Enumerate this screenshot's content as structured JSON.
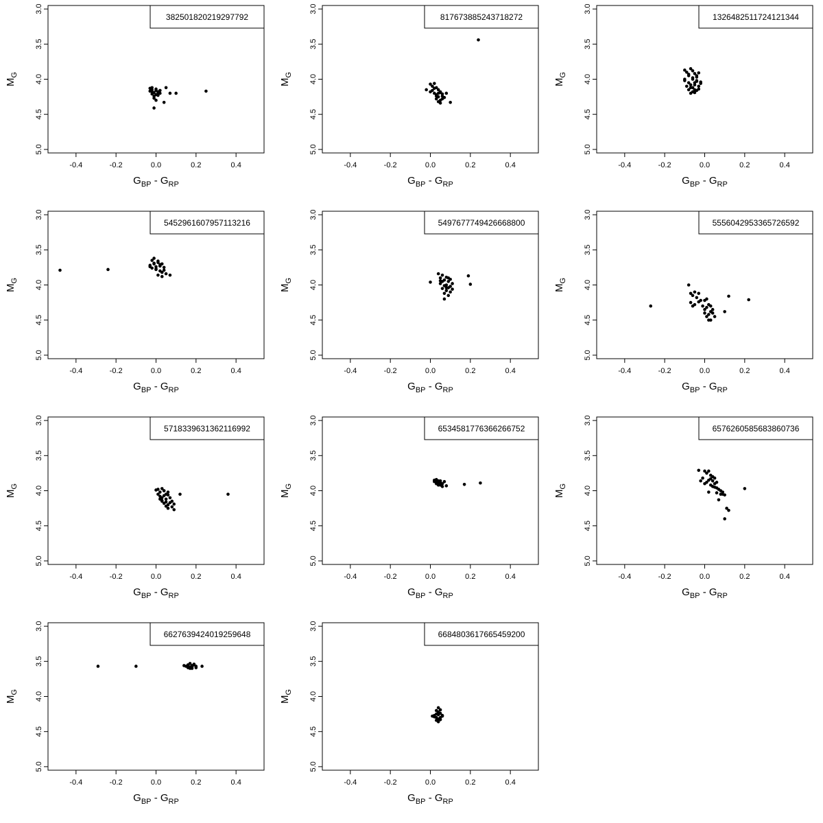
{
  "chart_data": [
    {
      "type": "scatter",
      "legend": "382501820219297792",
      "xlabel": {
        "main": "G",
        "sub1": "BP",
        "sep": " - ",
        "main2": "G",
        "sub2": "RP"
      },
      "ylabel": {
        "main": "M",
        "sub": "G"
      },
      "xlim": [
        -0.54,
        0.54
      ],
      "ylim": [
        5.05,
        2.95
      ],
      "ylim_reversed": true,
      "xticks": [
        "-0.4",
        "-0.2",
        "0.0",
        "0.2",
        "0.4"
      ],
      "yticks": [
        "3.0",
        "3.5",
        "4.0",
        "4.5",
        "5.0"
      ],
      "legend_position": "top-right",
      "x": [
        -0.03,
        -0.02,
        -0.01,
        0.0,
        0.01,
        0.02,
        -0.02,
        -0.01,
        0.0,
        0.01,
        -0.03,
        -0.01,
        0.02,
        0.0,
        -0.02,
        0.01,
        0.05,
        0.07,
        0.1,
        0.04,
        -0.01,
        0.25,
        0.0,
        -0.02
      ],
      "y": [
        4.17,
        4.15,
        4.19,
        4.14,
        4.18,
        4.16,
        4.21,
        4.24,
        4.22,
        4.19,
        4.13,
        4.27,
        4.2,
        4.16,
        4.12,
        4.23,
        4.12,
        4.2,
        4.2,
        4.33,
        4.41,
        4.17,
        4.3,
        4.18
      ]
    },
    {
      "type": "scatter",
      "legend": "817673885243718272",
      "xlabel": {
        "main": "G",
        "sub1": "BP",
        "sep": " - ",
        "main2": "G",
        "sub2": "RP"
      },
      "ylabel": {
        "main": "M",
        "sub": "G"
      },
      "xlim": [
        -0.54,
        0.54
      ],
      "ylim": [
        5.05,
        2.95
      ],
      "ylim_reversed": true,
      "xticks": [
        "-0.4",
        "-0.2",
        "0.0",
        "0.2",
        "0.4"
      ],
      "yticks": [
        "3.0",
        "3.5",
        "4.0",
        "4.5",
        "5.0"
      ],
      "legend_position": "top-right",
      "x": [
        -0.02,
        0.0,
        0.01,
        0.02,
        0.03,
        0.04,
        0.05,
        0.02,
        0.03,
        0.04,
        0.05,
        0.06,
        0.01,
        0.03,
        0.05,
        0.07,
        0.02,
        0.04,
        0.06,
        0.03,
        0.05,
        0.08,
        0.1,
        0.0,
        0.24,
        0.04,
        0.06
      ],
      "y": [
        4.15,
        4.07,
        4.1,
        4.06,
        4.12,
        4.15,
        4.18,
        4.2,
        4.22,
        4.25,
        4.19,
        4.24,
        4.16,
        4.28,
        4.3,
        4.26,
        4.13,
        4.32,
        4.21,
        4.24,
        4.34,
        4.2,
        4.33,
        4.18,
        3.44,
        4.2,
        4.28
      ]
    },
    {
      "type": "scatter",
      "legend": "1326482511724121344",
      "xlabel": {
        "main": "G",
        "sub1": "BP",
        "sep": " - ",
        "main2": "G",
        "sub2": "RP"
      },
      "ylabel": {
        "main": "M",
        "sub": "G"
      },
      "xlim": [
        -0.54,
        0.54
      ],
      "ylim": [
        5.05,
        2.95
      ],
      "ylim_reversed": true,
      "xticks": [
        "-0.4",
        "-0.2",
        "0.0",
        "0.2",
        "0.4"
      ],
      "yticks": [
        "3.0",
        "3.5",
        "4.0",
        "4.5",
        "5.0"
      ],
      "legend_position": "top-right",
      "x": [
        -0.1,
        -0.09,
        -0.08,
        -0.07,
        -0.06,
        -0.05,
        -0.04,
        -0.03,
        -0.1,
        -0.08,
        -0.06,
        -0.04,
        -0.02,
        -0.09,
        -0.07,
        -0.05,
        -0.03,
        -0.08,
        -0.06,
        -0.04,
        -0.07,
        -0.05,
        -0.03,
        -0.06,
        -0.04,
        -0.08,
        -0.05,
        -0.06,
        -0.07,
        -0.02,
        -0.04,
        -0.1,
        -0.05
      ],
      "y": [
        3.87,
        3.9,
        3.95,
        3.85,
        3.88,
        3.92,
        3.97,
        3.91,
        4.02,
        4.05,
        4.0,
        4.03,
        4.04,
        4.1,
        4.12,
        4.08,
        4.14,
        4.15,
        4.18,
        4.16,
        4.2,
        4.19,
        4.1,
        3.98,
        3.95,
        3.93,
        4.05,
        4.12,
        4.08,
        4.06,
        4.02,
        4.0,
        4.15
      ]
    },
    {
      "type": "scatter",
      "legend": "5452961607957113216",
      "xlabel": {
        "main": "G",
        "sub1": "BP",
        "sep": " - ",
        "main2": "G",
        "sub2": "RP"
      },
      "ylabel": {
        "main": "M",
        "sub": "G"
      },
      "xlim": [
        -0.54,
        0.54
      ],
      "ylim": [
        5.05,
        2.95
      ],
      "ylim_reversed": true,
      "xticks": [
        "-0.4",
        "-0.2",
        "0.0",
        "0.2",
        "0.4"
      ],
      "yticks": [
        "3.0",
        "3.5",
        "4.0",
        "4.5",
        "5.0"
      ],
      "legend_position": "top-right",
      "x": [
        -0.48,
        -0.24,
        -0.03,
        -0.02,
        -0.01,
        0.0,
        0.01,
        0.02,
        0.03,
        -0.02,
        0.0,
        0.02,
        0.04,
        -0.01,
        0.01,
        0.03,
        0.05,
        0.0,
        0.02,
        0.04,
        0.07,
        -0.03,
        0.01,
        0.03,
        -0.01,
        0.02
      ],
      "y": [
        3.79,
        3.78,
        3.72,
        3.65,
        3.7,
        3.74,
        3.68,
        3.73,
        3.7,
        3.76,
        3.78,
        3.8,
        3.75,
        3.62,
        3.66,
        3.82,
        3.84,
        3.77,
        3.71,
        3.79,
        3.86,
        3.74,
        3.86,
        3.88,
        3.69,
        3.73
      ]
    },
    {
      "type": "scatter",
      "legend": "5497677749426668800",
      "xlabel": {
        "main": "G",
        "sub1": "BP",
        "sep": " - ",
        "main2": "G",
        "sub2": "RP"
      },
      "ylabel": {
        "main": "M",
        "sub": "G"
      },
      "xlim": [
        -0.54,
        0.54
      ],
      "ylim": [
        5.05,
        2.95
      ],
      "ylim_reversed": true,
      "xticks": [
        "-0.4",
        "-0.2",
        "0.0",
        "0.2",
        "0.4"
      ],
      "yticks": [
        "3.0",
        "3.5",
        "4.0",
        "4.5",
        "5.0"
      ],
      "legend_position": "top-right",
      "x": [
        0.0,
        0.04,
        0.05,
        0.06,
        0.07,
        0.08,
        0.09,
        0.1,
        0.05,
        0.07,
        0.09,
        0.11,
        0.06,
        0.08,
        0.1,
        0.07,
        0.09,
        0.11,
        0.08,
        0.1,
        0.07,
        0.19,
        0.2,
        0.06,
        0.09,
        0.05,
        0.08
      ],
      "y": [
        3.96,
        3.84,
        3.9,
        3.86,
        3.93,
        3.89,
        3.95,
        3.92,
        3.98,
        4.01,
        4.04,
        3.98,
        4.05,
        4.08,
        4.1,
        4.12,
        4.15,
        4.06,
        4.0,
        4.02,
        4.2,
        3.87,
        3.99,
        3.95,
        3.9,
        3.94,
        4.04
      ]
    },
    {
      "type": "scatter",
      "legend": "5556042953365726592",
      "xlabel": {
        "main": "G",
        "sub1": "BP",
        "sep": " - ",
        "main2": "G",
        "sub2": "RP"
      },
      "ylabel": {
        "main": "M",
        "sub": "G"
      },
      "xlim": [
        -0.54,
        0.54
      ],
      "ylim": [
        5.05,
        2.95
      ],
      "ylim_reversed": true,
      "xticks": [
        "-0.4",
        "-0.2",
        "0.0",
        "0.2",
        "0.4"
      ],
      "yticks": [
        "3.0",
        "3.5",
        "4.0",
        "4.5",
        "5.0"
      ],
      "legend_position": "top-right",
      "x": [
        -0.27,
        -0.08,
        -0.07,
        -0.06,
        -0.05,
        -0.04,
        -0.03,
        -0.02,
        -0.07,
        -0.05,
        -0.03,
        -0.01,
        0.0,
        0.01,
        0.02,
        0.03,
        0.0,
        0.02,
        0.04,
        0.01,
        0.03,
        0.05,
        0.02,
        0.04,
        0.1,
        0.12,
        0.22,
        0.01,
        0.03,
        -0.06,
        0.0
      ],
      "y": [
        4.3,
        4.0,
        4.12,
        4.15,
        4.1,
        4.18,
        4.12,
        4.22,
        4.25,
        4.28,
        4.24,
        4.3,
        4.35,
        4.32,
        4.28,
        4.38,
        4.4,
        4.42,
        4.4,
        4.45,
        4.5,
        4.45,
        4.5,
        4.35,
        4.38,
        4.16,
        4.21,
        4.2,
        4.3,
        4.3,
        4.22
      ]
    },
    {
      "type": "scatter",
      "legend": "5718339631362116992",
      "xlabel": {
        "main": "G",
        "sub1": "BP",
        "sep": " - ",
        "main2": "G",
        "sub2": "RP"
      },
      "ylabel": {
        "main": "M",
        "sub": "G"
      },
      "xlim": [
        -0.54,
        0.54
      ],
      "ylim": [
        5.05,
        2.95
      ],
      "ylim_reversed": true,
      "xticks": [
        "-0.4",
        "-0.2",
        "0.0",
        "0.2",
        "0.4"
      ],
      "yticks": [
        "3.0",
        "3.5",
        "4.0",
        "4.5",
        "5.0"
      ],
      "legend_position": "top-right",
      "x": [
        0.0,
        0.01,
        0.02,
        0.03,
        0.04,
        0.05,
        0.02,
        0.03,
        0.04,
        0.05,
        0.06,
        0.03,
        0.05,
        0.07,
        0.04,
        0.06,
        0.08,
        0.05,
        0.07,
        0.09,
        0.06,
        0.08,
        0.09,
        0.12,
        0.36,
        0.02,
        0.04,
        0.06,
        0.01,
        0.03
      ],
      "y": [
        3.99,
        3.98,
        4.02,
        3.97,
        4.0,
        4.05,
        4.08,
        4.1,
        4.07,
        4.12,
        4.06,
        4.14,
        4.16,
        4.1,
        4.18,
        4.2,
        4.15,
        4.22,
        4.17,
        4.19,
        4.25,
        4.23,
        4.27,
        4.05,
        4.05,
        4.12,
        4.0,
        4.02,
        4.05,
        4.15
      ]
    },
    {
      "type": "scatter",
      "legend": "6534581776366266752",
      "xlabel": {
        "main": "G",
        "sub1": "BP",
        "sep": " - ",
        "main2": "G",
        "sub2": "RP"
      },
      "ylabel": {
        "main": "M",
        "sub": "G"
      },
      "xlim": [
        -0.54,
        0.54
      ],
      "ylim": [
        5.05,
        2.95
      ],
      "ylim_reversed": true,
      "xticks": [
        "-0.4",
        "-0.2",
        "0.0",
        "0.2",
        "0.4"
      ],
      "yticks": [
        "3.0",
        "3.5",
        "4.0",
        "4.5",
        "5.0"
      ],
      "legend_position": "top-right",
      "x": [
        0.02,
        0.03,
        0.04,
        0.05,
        0.03,
        0.04,
        0.05,
        0.06,
        0.04,
        0.05,
        0.07,
        0.08,
        0.03,
        0.05,
        0.06,
        0.17,
        0.25,
        0.02,
        0.04
      ],
      "y": [
        3.85,
        3.84,
        3.86,
        3.88,
        3.9,
        3.89,
        3.92,
        3.94,
        3.87,
        3.91,
        3.87,
        3.93,
        3.88,
        3.86,
        3.9,
        3.91,
        3.89,
        3.87,
        3.92
      ]
    },
    {
      "type": "scatter",
      "legend": "6576260585683860736",
      "xlabel": {
        "main": "G",
        "sub1": "BP",
        "sep": " - ",
        "main2": "G",
        "sub2": "RP"
      },
      "ylabel": {
        "main": "M",
        "sub": "G"
      },
      "xlim": [
        -0.54,
        0.54
      ],
      "ylim": [
        5.05,
        2.95
      ],
      "ylim_reversed": true,
      "xticks": [
        "-0.4",
        "-0.2",
        "0.0",
        "0.2",
        "0.4"
      ],
      "yticks": [
        "3.0",
        "3.5",
        "4.0",
        "4.5",
        "5.0"
      ],
      "legend_position": "top-right",
      "x": [
        -0.03,
        -0.01,
        0.0,
        0.01,
        0.02,
        0.03,
        0.04,
        0.05,
        0.01,
        0.02,
        0.03,
        0.04,
        0.05,
        0.06,
        0.03,
        0.05,
        0.07,
        0.08,
        0.06,
        0.08,
        0.09,
        0.1,
        0.07,
        0.09,
        0.11,
        0.12,
        0.1,
        0.2,
        0.02,
        0.04,
        -0.02,
        0.06,
        0.0
      ],
      "y": [
        3.71,
        3.82,
        3.72,
        3.75,
        3.72,
        3.78,
        3.8,
        3.82,
        3.88,
        3.85,
        3.83,
        3.86,
        3.9,
        3.88,
        3.92,
        3.95,
        3.98,
        4.0,
        4.03,
        4.05,
        4.02,
        4.06,
        4.13,
        4.05,
        4.25,
        4.28,
        4.4,
        3.97,
        4.02,
        3.94,
        3.86,
        3.96,
        3.9
      ]
    },
    {
      "type": "scatter",
      "legend": "6627639424019259648",
      "xlabel": {
        "main": "G",
        "sub1": "BP",
        "sep": " - ",
        "main2": "G",
        "sub2": "RP"
      },
      "ylabel": {
        "main": "M",
        "sub": "G"
      },
      "xlim": [
        -0.54,
        0.54
      ],
      "ylim": [
        5.05,
        2.95
      ],
      "ylim_reversed": true,
      "xticks": [
        "-0.4",
        "-0.2",
        "0.0",
        "0.2",
        "0.4"
      ],
      "yticks": [
        "3.0",
        "3.5",
        "4.0",
        "4.5",
        "5.0"
      ],
      "legend_position": "top-right",
      "x": [
        -0.29,
        -0.1,
        0.14,
        0.15,
        0.16,
        0.17,
        0.18,
        0.19,
        0.2,
        0.16,
        0.17,
        0.18,
        0.19,
        0.2,
        0.23,
        0.17,
        0.18
      ],
      "y": [
        3.57,
        3.57,
        3.56,
        3.57,
        3.55,
        3.58,
        3.56,
        3.54,
        3.57,
        3.59,
        3.6,
        3.58,
        3.55,
        3.59,
        3.57,
        3.53,
        3.6
      ]
    },
    {
      "type": "scatter",
      "legend": "6684803617665459200",
      "xlabel": {
        "main": "G",
        "sub1": "BP",
        "sep": " - ",
        "main2": "G",
        "sub2": "RP"
      },
      "ylabel": {
        "main": "M",
        "sub": "G"
      },
      "xlim": [
        -0.54,
        0.54
      ],
      "ylim": [
        5.05,
        2.95
      ],
      "ylim_reversed": true,
      "xticks": [
        "-0.4",
        "-0.2",
        "0.0",
        "0.2",
        "0.4"
      ],
      "yticks": [
        "3.0",
        "3.5",
        "4.0",
        "4.5",
        "5.0"
      ],
      "legend_position": "top-right",
      "x": [
        0.01,
        0.02,
        0.03,
        0.04,
        0.05,
        0.06,
        0.03,
        0.04,
        0.05,
        0.02,
        0.04,
        0.06,
        0.03,
        0.05,
        0.04,
        0.03,
        0.05,
        0.04
      ],
      "y": [
        4.28,
        4.27,
        4.25,
        4.22,
        4.24,
        4.28,
        4.3,
        4.32,
        4.3,
        4.29,
        4.16,
        4.27,
        4.34,
        4.33,
        4.36,
        4.2,
        4.19,
        4.26
      ]
    }
  ]
}
